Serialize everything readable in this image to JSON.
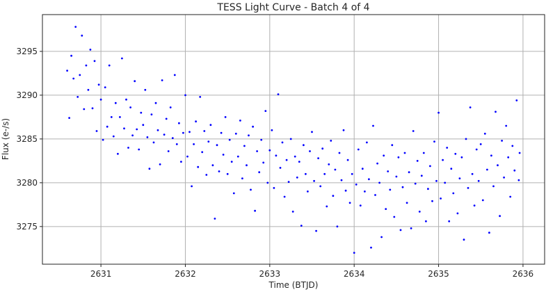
{
  "chart_data": {
    "type": "scatter",
    "title": "TESS Light Curve - Batch 4 of 4",
    "xlabel": "Time (BTJD)",
    "ylabel": "Flux (e-/s)",
    "xlim": [
      2630.307,
      2636.256
    ],
    "ylim": [
      3270.7,
      3299.2
    ],
    "xticks": [
      2631,
      2632,
      2633,
      2634,
      2635,
      2636
    ],
    "yticks": [
      3275,
      3280,
      3285,
      3290,
      3295
    ],
    "grid": true,
    "marker_color": "#0000ff",
    "points": [
      [
        2630.6,
        3292.8
      ],
      [
        2630.625,
        3287.4
      ],
      [
        2630.65,
        3294.5
      ],
      [
        2630.675,
        3291.9
      ],
      [
        2630.7,
        3297.8
      ],
      [
        2630.725,
        3289.8
      ],
      [
        2630.75,
        3292.3
      ],
      [
        2630.775,
        3296.8
      ],
      [
        2630.8,
        3288.4
      ],
      [
        2630.825,
        3293.4
      ],
      [
        2630.85,
        3290.6
      ],
      [
        2630.875,
        3295.2
      ],
      [
        2630.9,
        3288.5
      ],
      [
        2630.925,
        3293.9
      ],
      [
        2630.95,
        3285.9
      ],
      [
        2630.975,
        3291.2
      ],
      [
        2631.0,
        3289.5
      ],
      [
        2631.025,
        3284.9
      ],
      [
        2631.05,
        3290.9
      ],
      [
        2631.075,
        3286.4
      ],
      [
        2631.1,
        3293.4
      ],
      [
        2631.125,
        3287.5
      ],
      [
        2631.15,
        3285.3
      ],
      [
        2631.175,
        3289.1
      ],
      [
        2631.2,
        3283.3
      ],
      [
        2631.225,
        3287.5
      ],
      [
        2631.25,
        3294.2
      ],
      [
        2631.275,
        3286.2
      ],
      [
        2631.3,
        3289.5
      ],
      [
        2631.325,
        3284.0
      ],
      [
        2631.35,
        3288.6
      ],
      [
        2631.375,
        3285.4
      ],
      [
        2631.4,
        3291.6
      ],
      [
        2631.425,
        3286.1
      ],
      [
        2631.45,
        3283.8
      ],
      [
        2631.475,
        3288.0
      ],
      [
        2631.5,
        3286.6
      ],
      [
        2631.525,
        3290.6
      ],
      [
        2631.55,
        3285.2
      ],
      [
        2631.575,
        3281.6
      ],
      [
        2631.6,
        3287.8
      ],
      [
        2631.625,
        3284.6
      ],
      [
        2631.65,
        3289.1
      ],
      [
        2631.675,
        3286.0
      ],
      [
        2631.7,
        3282.1
      ],
      [
        2631.725,
        3291.7
      ],
      [
        2631.75,
        3285.5
      ],
      [
        2631.775,
        3287.3
      ],
      [
        2631.8,
        3283.6
      ],
      [
        2631.825,
        3288.6
      ],
      [
        2631.85,
        3285.1
      ],
      [
        2631.875,
        3292.3
      ],
      [
        2631.9,
        3284.4
      ],
      [
        2631.925,
        3286.8
      ],
      [
        2631.95,
        3282.4
      ],
      [
        2631.975,
        3285.7
      ],
      [
        2632.0,
        3290.0
      ],
      [
        2632.025,
        3283.0
      ],
      [
        2632.05,
        3285.8
      ],
      [
        2632.075,
        3279.6
      ],
      [
        2632.1,
        3284.4
      ],
      [
        2632.125,
        3287.0
      ],
      [
        2632.15,
        3281.8
      ],
      [
        2632.175,
        3289.8
      ],
      [
        2632.2,
        3283.5
      ],
      [
        2632.225,
        3285.9
      ],
      [
        2632.25,
        3280.9
      ],
      [
        2632.275,
        3284.7
      ],
      [
        2632.3,
        3286.6
      ],
      [
        2632.325,
        3282.0
      ],
      [
        2632.35,
        3275.9
      ],
      [
        2632.375,
        3284.3
      ],
      [
        2632.4,
        3281.3
      ],
      [
        2632.425,
        3285.7
      ],
      [
        2632.45,
        3283.2
      ],
      [
        2632.475,
        3287.5
      ],
      [
        2632.5,
        3281.0
      ],
      [
        2632.525,
        3284.9
      ],
      [
        2632.55,
        3282.4
      ],
      [
        2632.575,
        3278.8
      ],
      [
        2632.6,
        3285.6
      ],
      [
        2632.625,
        3283.0
      ],
      [
        2632.65,
        3287.1
      ],
      [
        2632.675,
        3280.5
      ],
      [
        2632.7,
        3284.2
      ],
      [
        2632.725,
        3282.0
      ],
      [
        2632.75,
        3285.4
      ],
      [
        2632.775,
        3279.2
      ],
      [
        2632.8,
        3286.4
      ],
      [
        2632.825,
        3276.8
      ],
      [
        2632.85,
        3283.6
      ],
      [
        2632.875,
        3281.2
      ],
      [
        2632.9,
        3284.9
      ],
      [
        2632.925,
        3282.3
      ],
      [
        2632.95,
        3288.2
      ],
      [
        2632.975,
        3280.0
      ],
      [
        2633.0,
        3283.7
      ],
      [
        2633.025,
        3286.0
      ],
      [
        2633.05,
        3279.4
      ],
      [
        2633.075,
        3283.1
      ],
      [
        2633.1,
        3290.1
      ],
      [
        2633.125,
        3281.7
      ],
      [
        2633.15,
        3284.6
      ],
      [
        2633.175,
        3278.4
      ],
      [
        2633.2,
        3282.6
      ],
      [
        2633.225,
        3280.1
      ],
      [
        2633.25,
        3285.0
      ],
      [
        2633.275,
        3276.7
      ],
      [
        2633.3,
        3283.0
      ],
      [
        2633.325,
        3280.6
      ],
      [
        2633.35,
        3282.4
      ],
      [
        2633.375,
        3275.1
      ],
      [
        2633.4,
        3284.3
      ],
      [
        2633.425,
        3281.0
      ],
      [
        2633.45,
        3279.0
      ],
      [
        2633.475,
        3283.6
      ],
      [
        2633.5,
        3285.8
      ],
      [
        2633.525,
        3280.2
      ],
      [
        2633.55,
        3274.5
      ],
      [
        2633.575,
        3282.8
      ],
      [
        2633.6,
        3279.6
      ],
      [
        2633.625,
        3283.9
      ],
      [
        2633.65,
        3281.0
      ],
      [
        2633.675,
        3277.3
      ],
      [
        2633.7,
        3282.1
      ],
      [
        2633.725,
        3284.8
      ],
      [
        2633.75,
        3278.5
      ],
      [
        2633.775,
        3281.5
      ],
      [
        2633.8,
        3275.0
      ],
      [
        2633.825,
        3283.4
      ],
      [
        2633.85,
        3280.3
      ],
      [
        2633.875,
        3286.0
      ],
      [
        2633.9,
        3279.1
      ],
      [
        2633.925,
        3282.6
      ],
      [
        2633.95,
        3277.7
      ],
      [
        2633.975,
        3281.0
      ],
      [
        2634.0,
        3272.0
      ],
      [
        2634.025,
        3279.8
      ],
      [
        2634.05,
        3283.8
      ],
      [
        2634.075,
        3277.4
      ],
      [
        2634.1,
        3281.6
      ],
      [
        2634.125,
        3279.0
      ],
      [
        2634.15,
        3284.6
      ],
      [
        2634.175,
        3280.4
      ],
      [
        2634.2,
        3272.6
      ],
      [
        2634.225,
        3286.5
      ],
      [
        2634.25,
        3278.6
      ],
      [
        2634.275,
        3282.2
      ],
      [
        2634.3,
        3280.0
      ],
      [
        2634.325,
        3273.8
      ],
      [
        2634.35,
        3283.1
      ],
      [
        2634.375,
        3277.0
      ],
      [
        2634.4,
        3281.3
      ],
      [
        2634.425,
        3279.2
      ],
      [
        2634.45,
        3284.3
      ],
      [
        2634.475,
        3276.1
      ],
      [
        2634.5,
        3280.7
      ],
      [
        2634.525,
        3282.9
      ],
      [
        2634.55,
        3274.6
      ],
      [
        2634.575,
        3279.5
      ],
      [
        2634.6,
        3283.4
      ],
      [
        2634.625,
        3277.7
      ],
      [
        2634.65,
        3281.2
      ],
      [
        2634.675,
        3274.8
      ],
      [
        2634.7,
        3285.9
      ],
      [
        2634.725,
        3279.9
      ],
      [
        2634.75,
        3282.5
      ],
      [
        2634.775,
        3276.7
      ],
      [
        2634.8,
        3280.8
      ],
      [
        2634.825,
        3283.4
      ],
      [
        2634.85,
        3275.6
      ],
      [
        2634.875,
        3279.3
      ],
      [
        2634.9,
        3281.9
      ],
      [
        2634.925,
        3277.9
      ],
      [
        2634.95,
        3284.7
      ],
      [
        2634.975,
        3280.2
      ],
      [
        2635.0,
        3288.0
      ],
      [
        2635.025,
        3278.2
      ],
      [
        2635.05,
        3282.6
      ],
      [
        2635.075,
        3280.0
      ],
      [
        2635.1,
        3284.0
      ],
      [
        2635.125,
        3275.6
      ],
      [
        2635.15,
        3281.6
      ],
      [
        2635.175,
        3278.8
      ],
      [
        2635.2,
        3283.3
      ],
      [
        2635.225,
        3276.5
      ],
      [
        2635.25,
        3280.5
      ],
      [
        2635.275,
        3282.9
      ],
      [
        2635.3,
        3273.5
      ],
      [
        2635.325,
        3285.0
      ],
      [
        2635.35,
        3279.4
      ],
      [
        2635.375,
        3288.6
      ],
      [
        2635.4,
        3281.0
      ],
      [
        2635.425,
        3277.4
      ],
      [
        2635.45,
        3283.8
      ],
      [
        2635.475,
        3280.2
      ],
      [
        2635.5,
        3284.4
      ],
      [
        2635.525,
        3278.0
      ],
      [
        2635.55,
        3285.6
      ],
      [
        2635.575,
        3281.5
      ],
      [
        2635.6,
        3274.3
      ],
      [
        2635.625,
        3283.1
      ],
      [
        2635.65,
        3279.6
      ],
      [
        2635.675,
        3288.1
      ],
      [
        2635.7,
        3282.0
      ],
      [
        2635.725,
        3276.2
      ],
      [
        2635.75,
        3284.8
      ],
      [
        2635.775,
        3280.6
      ],
      [
        2635.8,
        3286.5
      ],
      [
        2635.825,
        3282.9
      ],
      [
        2635.85,
        3278.4
      ],
      [
        2635.875,
        3284.2
      ],
      [
        2635.9,
        3281.4
      ],
      [
        2635.925,
        3289.4
      ],
      [
        2635.95,
        3280.3
      ],
      [
        2635.96,
        3283.4
      ]
    ]
  }
}
